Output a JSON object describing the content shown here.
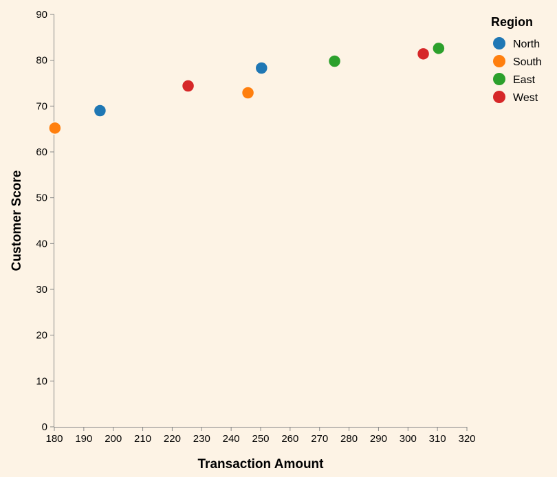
{
  "chart_data": {
    "type": "scatter",
    "xlabel": "Transaction Amount",
    "ylabel": "Customer Score",
    "xlim": [
      180,
      320
    ],
    "ylim": [
      0,
      90
    ],
    "x_ticks": [
      180,
      190,
      200,
      210,
      220,
      230,
      240,
      250,
      260,
      270,
      280,
      290,
      300,
      310,
      320
    ],
    "y_ticks": [
      0,
      10,
      20,
      30,
      40,
      50,
      60,
      70,
      80,
      90
    ],
    "grid": false,
    "legend": {
      "title": "Region",
      "placement": "top-right",
      "entries": [
        {
          "name": "North",
          "color": "#1f77b4"
        },
        {
          "name": "South",
          "color": "#ff7f0e"
        },
        {
          "name": "East",
          "color": "#2ca02c"
        },
        {
          "name": "West",
          "color": "#d62728"
        }
      ]
    },
    "series": [
      {
        "name": "North",
        "color": "#1f77b4",
        "points": [
          {
            "x": 195.5,
            "y": 69.0
          },
          {
            "x": 250.3,
            "y": 78.3
          }
        ]
      },
      {
        "name": "South",
        "color": "#ff7f0e",
        "points": [
          {
            "x": 180.2,
            "y": 65.2
          },
          {
            "x": 245.7,
            "y": 72.9
          }
        ]
      },
      {
        "name": "East",
        "color": "#2ca02c",
        "points": [
          {
            "x": 275.1,
            "y": 79.8
          },
          {
            "x": 310.4,
            "y": 82.6
          }
        ]
      },
      {
        "name": "West",
        "color": "#d62728",
        "points": [
          {
            "x": 225.4,
            "y": 74.4
          },
          {
            "x": 305.2,
            "y": 81.4
          }
        ]
      }
    ]
  }
}
